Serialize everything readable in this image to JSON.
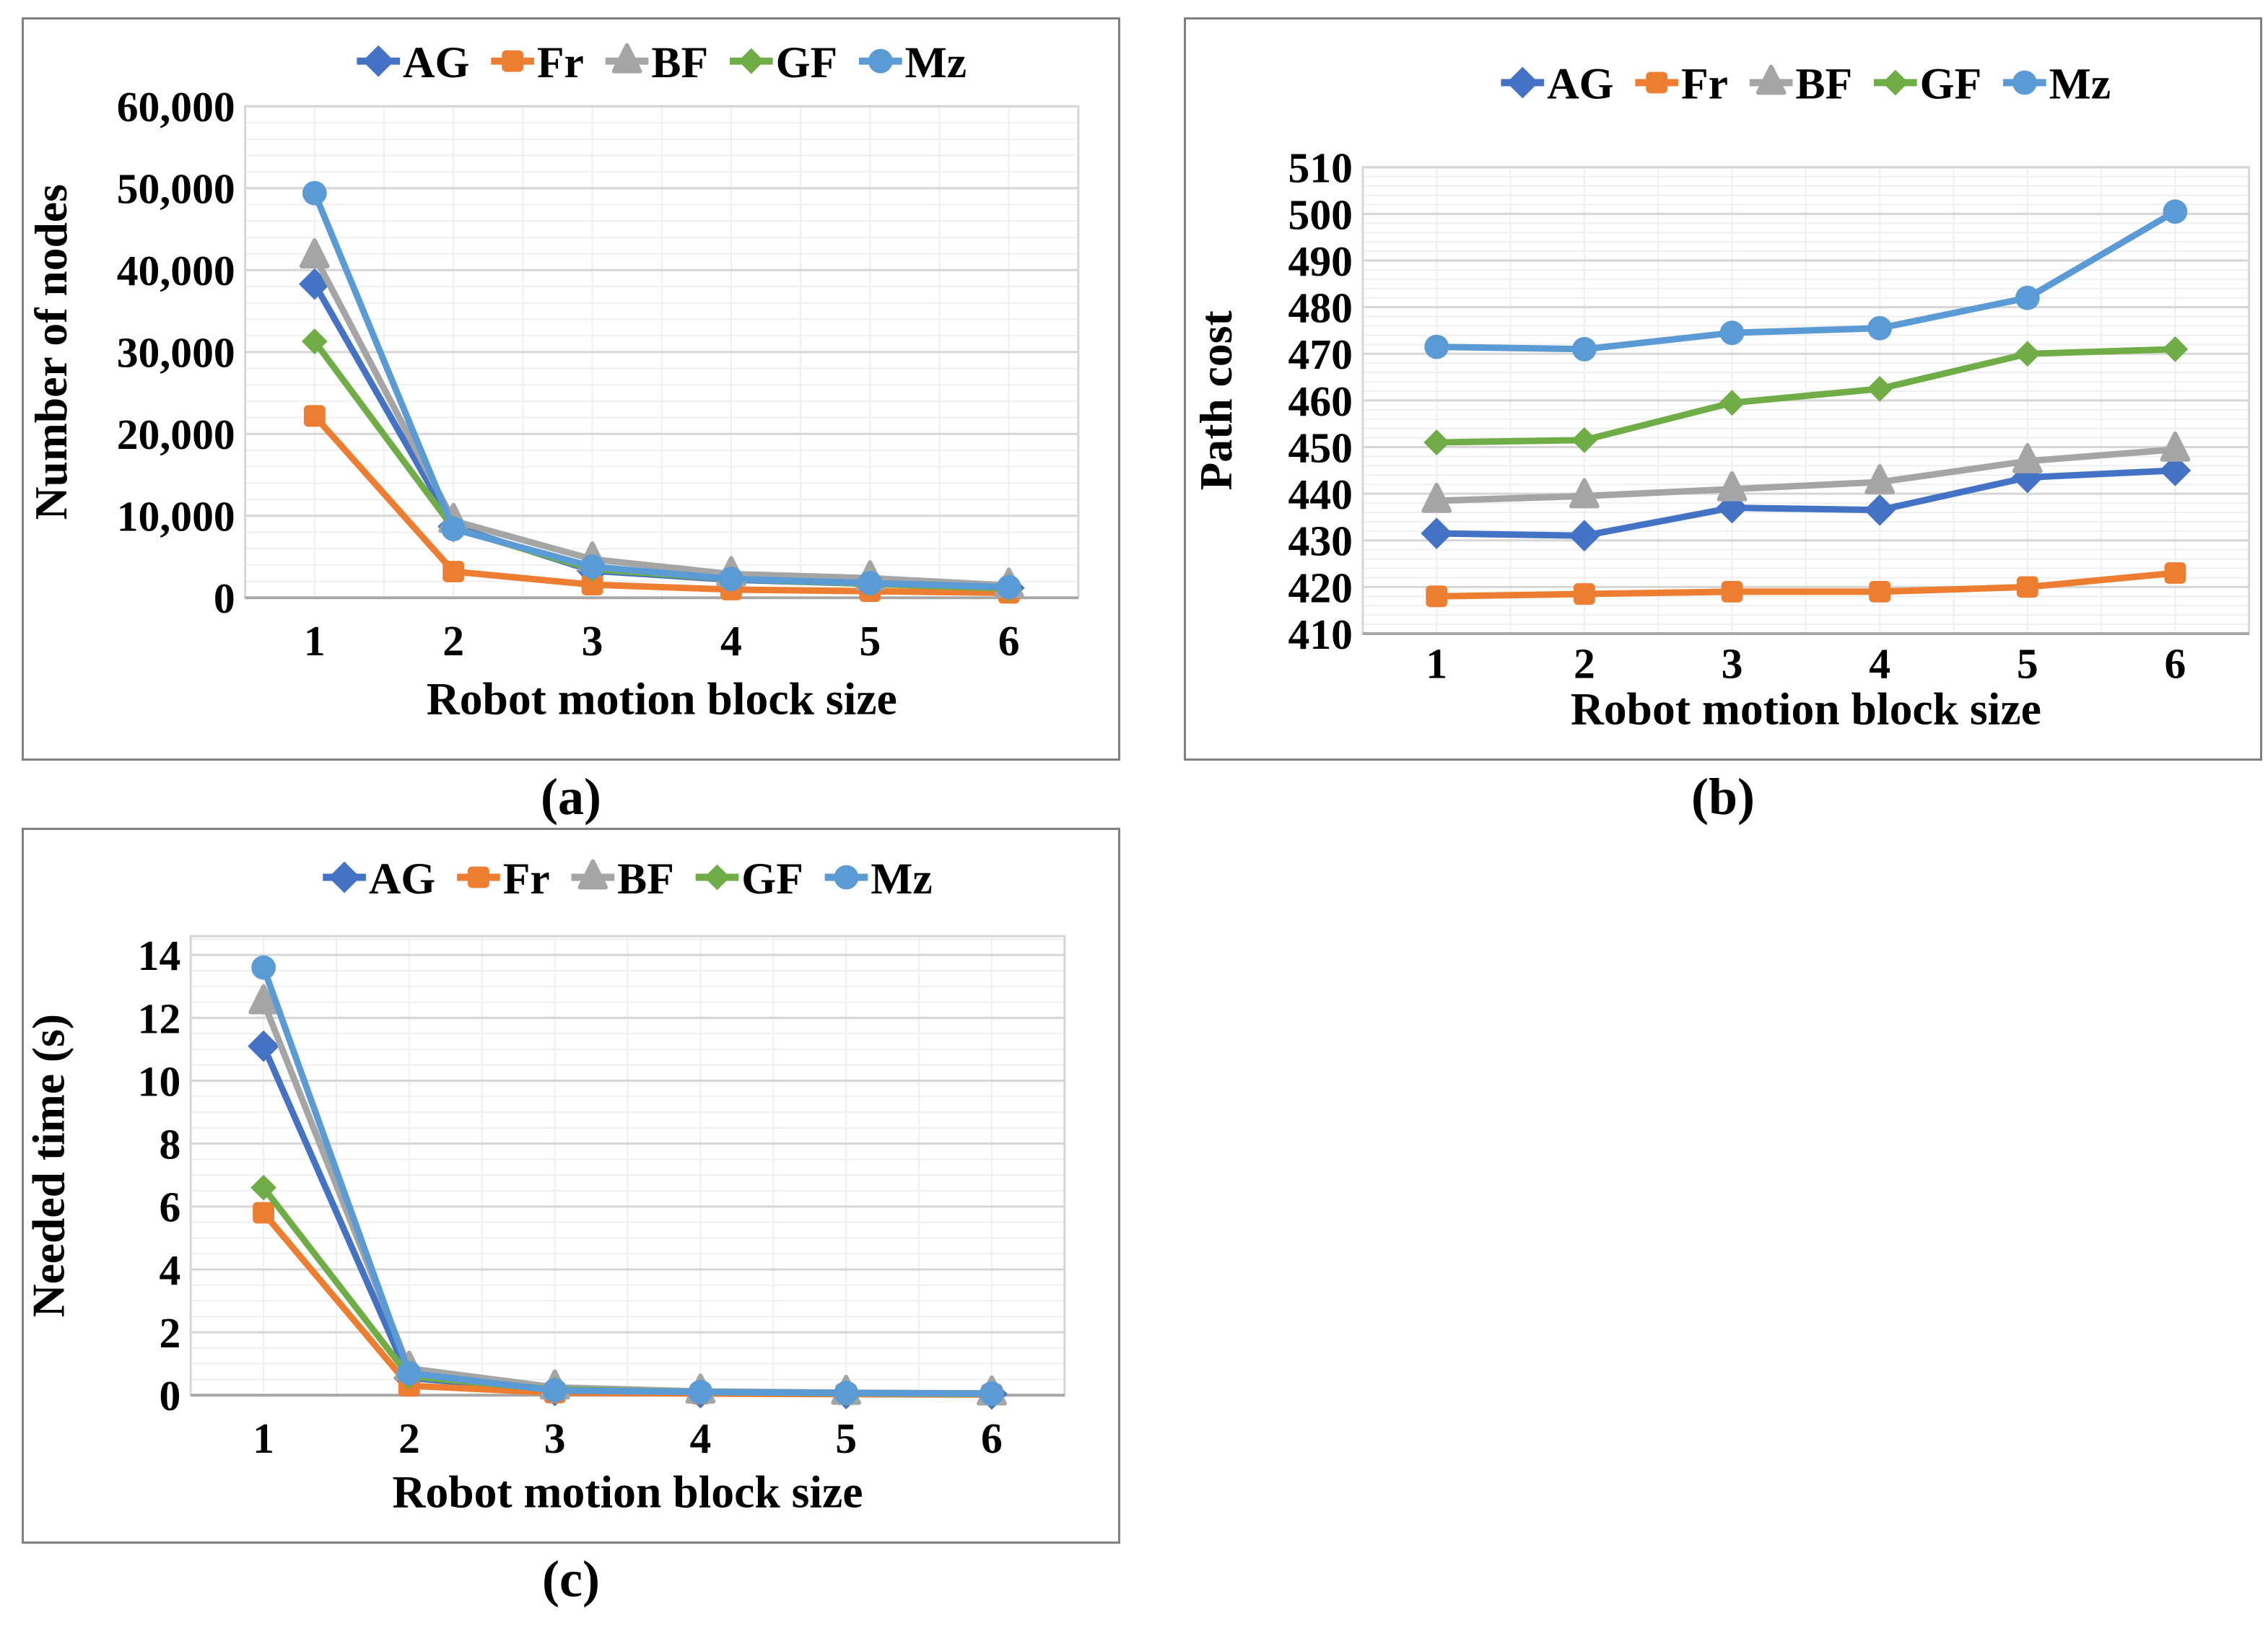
{
  "page": {
    "background": "#ffffff"
  },
  "styles": {
    "series_palette": {
      "AG": "#4472C4",
      "Fr": "#ED7D31",
      "BF": "#A5A5A5",
      "GF": "#70AD47",
      "Mz": "#5B9BD5"
    },
    "grid_minor": "#EFEFEF",
    "grid_major": "#D6D6D6",
    "axis_line": "#A6A6A6",
    "panel_border": "#808080",
    "text_color": "#000000"
  },
  "chart_data": [
    {
      "id": "a",
      "type": "line",
      "caption": "(a)",
      "xlabel": "Robot motion block size",
      "ylabel": "Number of nodes",
      "x": [
        1,
        2,
        3,
        4,
        5,
        6
      ],
      "xlim": [
        0.5,
        6.5
      ],
      "ylim": [
        0,
        60000
      ],
      "ytick_major": 10000,
      "ytick_minor": 2000,
      "ytick_format": "comma",
      "grid": true,
      "legend_position": "top",
      "legend": [
        "AG",
        "Fr",
        "BF",
        "GF",
        "Mz"
      ],
      "series": [
        {
          "name": "AG",
          "marker": "diamond",
          "values": [
            38300,
            8700,
            3300,
            2200,
            1700,
            1200
          ]
        },
        {
          "name": "Fr",
          "marker": "square",
          "values": [
            22200,
            3200,
            1600,
            1000,
            800,
            600
          ]
        },
        {
          "name": "BF",
          "marker": "triangle",
          "values": [
            41700,
            9400,
            4700,
            2900,
            2400,
            1500
          ]
        },
        {
          "name": "GF",
          "marker": "diamond",
          "values": [
            31300,
            8500,
            3500,
            2300,
            1700,
            1100
          ]
        },
        {
          "name": "Mz",
          "marker": "circle",
          "values": [
            49400,
            8400,
            3800,
            2300,
            1800,
            1300
          ]
        }
      ]
    },
    {
      "id": "b",
      "type": "line",
      "caption": "(b)",
      "xlabel": "Robot motion block size",
      "ylabel": "Path cost",
      "x": [
        1,
        2,
        3,
        4,
        5,
        6
      ],
      "xlim": [
        0.5,
        6.5
      ],
      "ylim": [
        410,
        510
      ],
      "ytick_major": 10,
      "ytick_minor": 2,
      "ytick_format": "plain",
      "grid": true,
      "legend_position": "top",
      "legend": [
        "AG",
        "Fr",
        "BF",
        "GF",
        "Mz"
      ],
      "series": [
        {
          "name": "AG",
          "marker": "diamond",
          "values": [
            431.5,
            431,
            437,
            436.5,
            443.5,
            445
          ]
        },
        {
          "name": "Fr",
          "marker": "square",
          "values": [
            418,
            418.5,
            419,
            419,
            420,
            423
          ]
        },
        {
          "name": "BF",
          "marker": "triangle",
          "values": [
            438.5,
            439.5,
            441,
            442.5,
            447,
            449.5
          ]
        },
        {
          "name": "GF",
          "marker": "diamond",
          "values": [
            451,
            451.5,
            459.5,
            462.5,
            470,
            471
          ]
        },
        {
          "name": "Mz",
          "marker": "circle",
          "values": [
            471.5,
            471,
            474.5,
            475.5,
            482,
            500.5
          ]
        }
      ]
    },
    {
      "id": "c",
      "type": "line",
      "caption": "(c)",
      "xlabel": "Robot motion block size",
      "ylabel": "Needed time (s)",
      "x": [
        1,
        2,
        3,
        4,
        5,
        6
      ],
      "xlim": [
        0.5,
        6.5
      ],
      "ylim": [
        0,
        14
      ],
      "ytick_major": 2,
      "ytick_minor": 0.5,
      "ytick_format": "plain",
      "grid": true,
      "legend_position": "top",
      "legend": [
        "AG",
        "Fr",
        "BF",
        "GF",
        "Mz"
      ],
      "series": [
        {
          "name": "AG",
          "marker": "diamond",
          "values": [
            11.1,
            0.55,
            0.15,
            0.08,
            0.05,
            0.04
          ]
        },
        {
          "name": "Fr",
          "marker": "square",
          "values": [
            5.8,
            0.3,
            0.08,
            0.05,
            0.03,
            0.02
          ]
        },
        {
          "name": "BF",
          "marker": "triangle",
          "values": [
            12.5,
            0.85,
            0.25,
            0.12,
            0.08,
            0.06
          ]
        },
        {
          "name": "GF",
          "marker": "diamond",
          "values": [
            6.6,
            0.6,
            0.18,
            0.1,
            0.06,
            0.04
          ]
        },
        {
          "name": "Mz",
          "marker": "circle",
          "values": [
            13.6,
            0.7,
            0.15,
            0.1,
            0.07,
            0.05
          ]
        }
      ]
    }
  ]
}
